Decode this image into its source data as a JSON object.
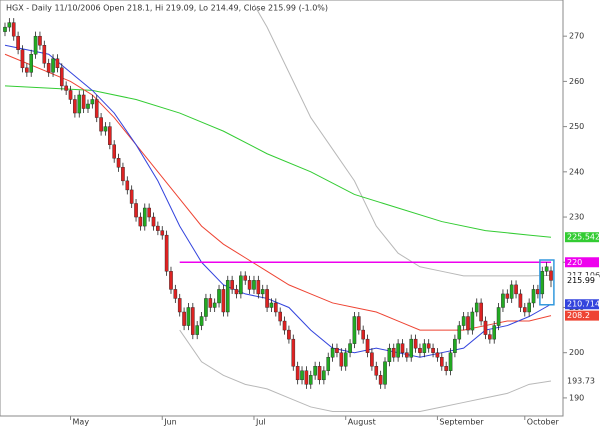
{
  "chart_data": {
    "type": "candlestick",
    "title": "HGX - Daily 11/10/2006 Open 218.1, Hi 219.09, Lo 214.49, Close 215.99 (-1.0%)",
    "categories": [
      null,
      null,
      null,
      null,
      null,
      null,
      null,
      null,
      null,
      null,
      null,
      null,
      null,
      null,
      null,
      "May",
      null,
      null,
      null,
      null,
      null,
      null,
      null,
      null,
      null,
      null,
      null,
      null,
      null,
      null,
      null,
      null,
      null,
      null,
      null,
      null,
      "Jun",
      null,
      null,
      null,
      null,
      null,
      null,
      null,
      null,
      null,
      null,
      null,
      null,
      null,
      null,
      null,
      null,
      null,
      null,
      null,
      null,
      "Jul",
      null,
      null,
      null,
      null,
      null,
      null,
      null,
      null,
      null,
      null,
      null,
      null,
      null,
      null,
      null,
      null,
      null,
      null,
      null,
      null,
      "August",
      null,
      null,
      null,
      null,
      null,
      null,
      null,
      null,
      null,
      null,
      null,
      null,
      null,
      null,
      null,
      null,
      null,
      null,
      null,
      null,
      "September",
      null,
      null,
      null,
      null,
      null,
      null,
      null,
      null,
      null,
      null,
      null,
      null,
      null,
      null,
      null,
      null,
      null,
      null,
      null,
      "October",
      null,
      null,
      null,
      null,
      null,
      null
    ],
    "open": [
      271,
      272,
      273,
      270,
      267,
      263,
      262,
      266,
      270,
      268,
      264,
      262,
      265,
      263,
      259,
      258,
      256,
      253,
      257,
      254,
      255,
      256,
      252,
      249,
      250,
      246,
      243,
      241,
      238,
      236,
      233,
      230,
      228,
      232,
      230,
      228,
      227,
      226,
      218,
      214,
      212,
      209,
      206,
      210,
      204,
      206,
      208,
      212,
      210,
      211,
      214,
      209,
      216,
      214,
      213,
      217,
      216,
      214,
      216,
      213,
      214,
      210,
      211,
      209,
      207,
      205,
      203,
      197,
      194,
      196,
      193,
      195,
      197,
      194,
      196,
      199,
      201,
      200,
      197,
      200,
      202,
      208,
      205,
      203,
      200,
      197,
      195,
      193,
      198,
      201,
      199,
      202,
      200,
      199,
      203,
      201,
      200,
      202,
      201,
      200,
      199,
      197,
      196,
      200,
      203,
      206,
      208,
      205,
      209,
      211,
      207,
      204,
      203,
      206,
      210,
      213,
      212,
      215,
      213,
      210,
      209,
      211,
      214,
      213,
      218,
      218.1
    ],
    "high": [
      273,
      274,
      274,
      271,
      268,
      264,
      267,
      271,
      271,
      269,
      265,
      266,
      266,
      264,
      260,
      259,
      257,
      258,
      258,
      256,
      257,
      257,
      253,
      251,
      251,
      247,
      244,
      242,
      239,
      237,
      234,
      231,
      233,
      233,
      231,
      229,
      228,
      227,
      219,
      215,
      213,
      210,
      211,
      211,
      207,
      209,
      213,
      213,
      212,
      215,
      215,
      217,
      217,
      215,
      218,
      218,
      217,
      217,
      217,
      215,
      215,
      212,
      212,
      210,
      208,
      206,
      204,
      198,
      197,
      197,
      196,
      198,
      198,
      197,
      200,
      202,
      202,
      201,
      201,
      203,
      209,
      209,
      206,
      204,
      201,
      198,
      196,
      199,
      202,
      202,
      203,
      203,
      201,
      204,
      204,
      202,
      203,
      203,
      202,
      201,
      200,
      198,
      201,
      204,
      207,
      209,
      209,
      210,
      212,
      212,
      208,
      205,
      207,
      211,
      214,
      214,
      216,
      216,
      214,
      211,
      212,
      215,
      215,
      219,
      220,
      219.09
    ],
    "low": [
      270,
      271,
      269,
      266,
      262,
      261,
      261,
      265,
      267,
      263,
      261,
      261,
      262,
      258,
      257,
      255,
      252,
      252,
      253,
      253,
      254,
      251,
      248,
      248,
      245,
      242,
      240,
      237,
      235,
      232,
      229,
      227,
      227,
      229,
      227,
      226,
      225,
      217,
      213,
      211,
      208,
      205,
      205,
      203,
      203,
      205,
      207,
      209,
      209,
      210,
      208,
      208,
      213,
      212,
      212,
      215,
      213,
      213,
      212,
      212,
      209,
      209,
      208,
      206,
      204,
      202,
      196,
      193,
      193,
      192,
      192,
      194,
      193,
      193,
      195,
      198,
      199,
      196,
      196,
      199,
      201,
      204,
      202,
      199,
      196,
      194,
      192,
      192,
      197,
      198,
      198,
      199,
      198,
      198,
      200,
      199,
      199,
      200,
      199,
      198,
      196,
      195,
      195,
      199,
      202,
      205,
      204,
      204,
      208,
      206,
      203,
      202,
      202,
      205,
      209,
      211,
      211,
      212,
      209,
      208,
      208,
      210,
      212,
      212,
      217,
      214.49
    ],
    "close": [
      272,
      273,
      270,
      267,
      263,
      262,
      266,
      270,
      268,
      264,
      262,
      265,
      263,
      259,
      258,
      256,
      253,
      257,
      254,
      255,
      256,
      252,
      249,
      250,
      246,
      243,
      241,
      238,
      236,
      233,
      230,
      228,
      232,
      230,
      228,
      227,
      226,
      218,
      214,
      212,
      209,
      206,
      210,
      204,
      206,
      208,
      212,
      210,
      211,
      214,
      209,
      216,
      214,
      213,
      217,
      216,
      214,
      216,
      213,
      214,
      210,
      211,
      209,
      207,
      205,
      203,
      197,
      194,
      196,
      193,
      195,
      197,
      194,
      196,
      199,
      201,
      200,
      197,
      200,
      202,
      208,
      205,
      203,
      200,
      197,
      195,
      193,
      198,
      201,
      199,
      202,
      200,
      199,
      203,
      201,
      200,
      202,
      201,
      200,
      199,
      197,
      196,
      200,
      203,
      206,
      208,
      205,
      209,
      211,
      207,
      204,
      203,
      206,
      210,
      213,
      212,
      215,
      213,
      210,
      209,
      211,
      214,
      213,
      218,
      219,
      215.99
    ],
    "up_color": "#22aa22",
    "down_color": "#dd2222",
    "overlays": [
      {
        "color": "#b8b8b8",
        "x": [
          57,
          60,
          65,
          70,
          75,
          80,
          85,
          90,
          95,
          100,
          105,
          110,
          115,
          120,
          125
        ],
        "values": [
          277,
          272,
          262,
          252,
          245,
          238,
          228,
          222,
          219,
          218,
          217,
          217,
          217,
          217,
          217.106
        ]
      },
      {
        "color": "#b8b8b8",
        "x": [
          40,
          45,
          50,
          55,
          60,
          65,
          70,
          75,
          80,
          85,
          90,
          95,
          100,
          105,
          110,
          115,
          120,
          125
        ],
        "values": [
          205,
          198,
          195,
          193,
          192,
          190,
          188,
          187,
          187,
          187,
          187,
          187,
          188,
          189,
          190,
          191,
          193,
          193.73
        ]
      },
      {
        "color": "#33cc33",
        "x": [
          0,
          20,
          30,
          40,
          50,
          60,
          70,
          80,
          90,
          100,
          110,
          120,
          125
        ],
        "values": [
          259,
          258,
          256,
          253,
          249,
          244,
          240,
          235,
          232,
          229,
          227,
          226,
          225.542
        ]
      },
      {
        "color": "#ee4433",
        "x": [
          0,
          10,
          15,
          20,
          25,
          30,
          35,
          40,
          45,
          50,
          55,
          60,
          65,
          70,
          75,
          80,
          85,
          90,
          95,
          100,
          105,
          110,
          115,
          120,
          125
        ],
        "values": [
          266,
          262,
          260,
          257,
          252,
          246,
          240,
          234,
          228,
          224,
          221,
          218,
          215,
          213,
          211,
          210,
          209,
          207,
          205,
          205,
          205,
          206,
          207,
          207,
          208.2
        ]
      },
      {
        "color": "#3344dd",
        "x": [
          0,
          10,
          15,
          20,
          25,
          30,
          35,
          40,
          45,
          50,
          55,
          60,
          65,
          70,
          75,
          80,
          85,
          90,
          95,
          100,
          105,
          110,
          115,
          120,
          125
        ],
        "values": [
          268,
          266,
          262,
          258,
          253,
          246,
          238,
          228,
          220,
          215,
          213,
          212,
          210,
          205,
          201,
          200,
          201,
          200,
          199,
          200,
          201,
          205,
          206,
          208,
          210.714
        ]
      },
      {
        "color": "#ee00ee",
        "x": [
          40,
          125
        ],
        "values": [
          220,
          220
        ]
      }
    ],
    "ylim": [
      186,
      278
    ],
    "yticks": [
      190,
      200,
      210,
      220,
      230,
      240,
      250,
      260,
      270
    ],
    "grid": false
  }
}
